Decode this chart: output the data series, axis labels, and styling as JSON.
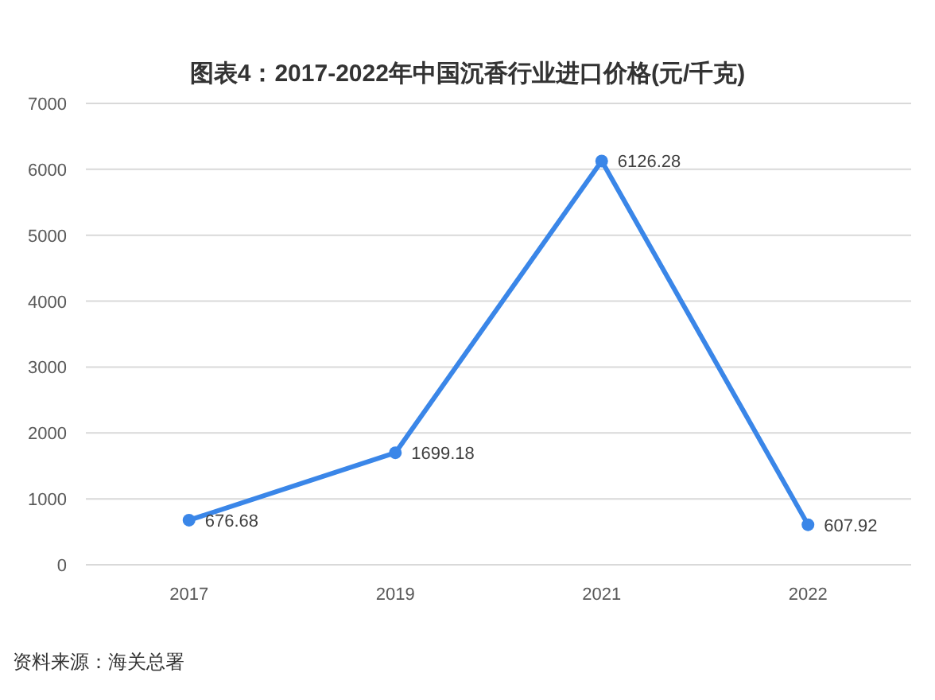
{
  "chart_data": {
    "type": "line",
    "title": "图表4：2017-2022年中国沉香行业进口价格(元/千克)",
    "categories": [
      "2017",
      "2019",
      "2021",
      "2022"
    ],
    "values": [
      676.68,
      1699.18,
      6126.28,
      607.92
    ],
    "color": "#3a86e8",
    "ylim": [
      0,
      7000
    ],
    "yticks": [
      0,
      1000,
      2000,
      3000,
      4000,
      5000,
      6000,
      7000
    ],
    "grid": "y",
    "marker": "circle",
    "line_style": "solid",
    "data_labels": true,
    "annotations": [
      "资料来源：海关总署"
    ]
  }
}
